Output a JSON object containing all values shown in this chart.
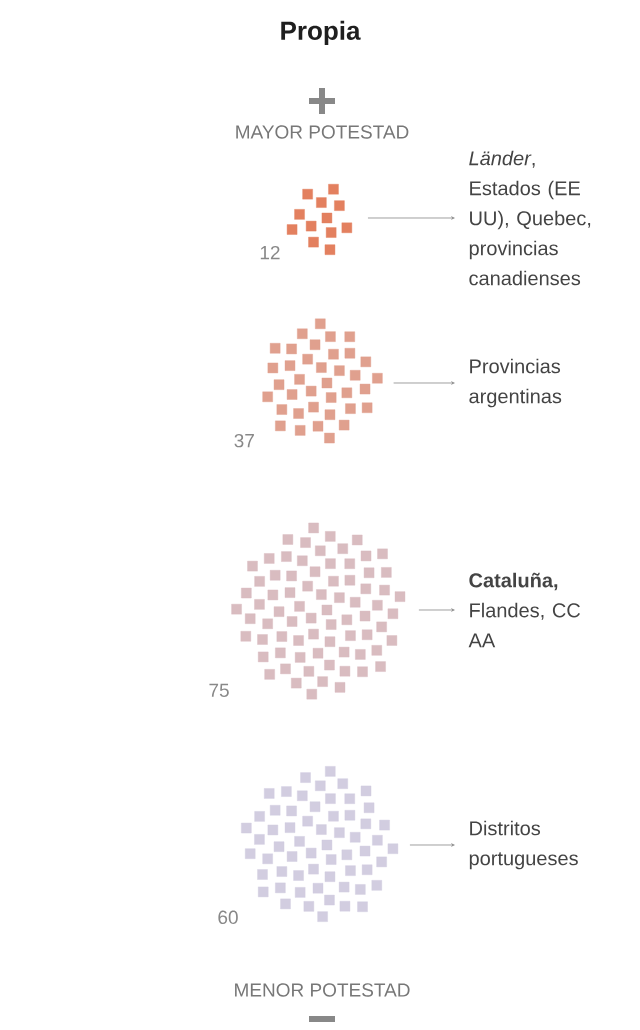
{
  "chart_data": {
    "type": "other",
    "title": "Propia",
    "categories": [
      "*Länder*, Estados (EE UU), Quebec, provincias canadienses",
      "Provincias argentinas",
      "**Cataluña,** Flandes, CC AA",
      "Distritos portugueses"
    ],
    "values": [
      12,
      37,
      75,
      60
    ],
    "colors": [
      "#e3805f",
      "#e0a08e",
      "#d9bcc0",
      "#d2cde0"
    ],
    "data_labels": true,
    "annotations": [
      "MAYOR POTESTAD",
      "MENOR POTESTAD"
    ]
  }
}
